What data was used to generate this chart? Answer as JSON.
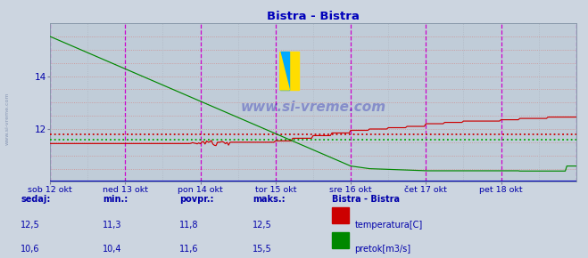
{
  "title": "Bistra - Bistra",
  "bg_color": "#ccd5e0",
  "plot_bg_color": "#c0ccd8",
  "title_color": "#0000bb",
  "label_color": "#0000aa",
  "temp_color": "#cc0000",
  "flow_color": "#008800",
  "avg_temp_color": "#cc0000",
  "avg_flow_color": "#00aa00",
  "grid_h_color": "#d09090",
  "grid_v_minor_color": "#b0b8c4",
  "grid_v_major_color": "#cc00cc",
  "baseline_color": "#0000bb",
  "xlim": [
    0,
    336
  ],
  "ylim": [
    10.0,
    16.0
  ],
  "yticks": [
    12,
    14
  ],
  "temp_avg": 11.8,
  "flow_avg": 11.6,
  "day_labels": [
    "sob 12 okt",
    "ned 13 okt",
    "pon 14 okt",
    "tor 15 okt",
    "sre 16 okt",
    "čet 17 okt",
    "pet 18 okt"
  ],
  "day_positions": [
    0,
    48,
    96,
    144,
    192,
    240,
    288
  ],
  "watermark": "www.si-vreme.com",
  "sidebar_text": "www.si-vreme.com",
  "legend_headers": [
    "sedaj:",
    "min.:",
    "povpr.:",
    "maks.:"
  ],
  "legend_title": "Bistra - Bistra",
  "temp_row": [
    "12,5",
    "11,3",
    "11,8",
    "12,5"
  ],
  "flow_row": [
    "10,6",
    "10,4",
    "11,6",
    "15,5"
  ],
  "temp_label": "temperatura[C]",
  "flow_label": "pretok[m3/s]"
}
